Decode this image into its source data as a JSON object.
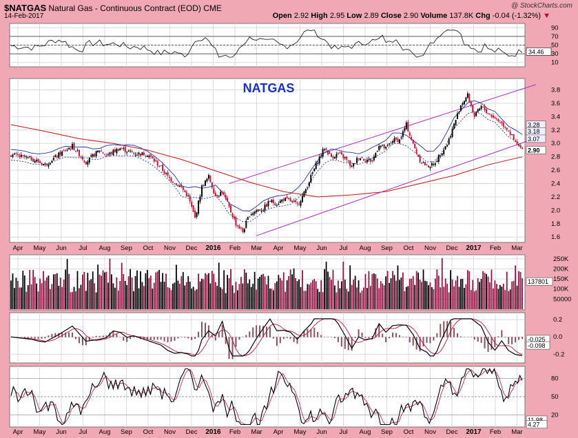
{
  "header": {
    "symbol": "$NATGAS",
    "description": "Natural Gas - Continuous Contract (EOD)",
    "exchange": "CME",
    "date": "14-Feb-2017",
    "watermark": "@ StockCharts.com",
    "open_label": "Open",
    "open": "2.92",
    "high_label": "High",
    "high": "2.95",
    "low_label": "Low",
    "low": "2.89",
    "close_label": "Close",
    "close": "2.90",
    "volume_label": "Volume",
    "volume": "137.8K",
    "chg_label": "Chg",
    "chg": "-0.04 (-1.32%)",
    "chg_marker": "▼"
  },
  "annotation": "NATGAS",
  "colors": {
    "up": "#000000",
    "down": "#cc1133",
    "sma200": "#cc1111",
    "channel": "#b030c0",
    "envelope": "#2233aa",
    "background": "#f0a8b4"
  },
  "chart_data": [
    {
      "panel": "rsi",
      "type": "line",
      "yticks": [
        10,
        30,
        50,
        70,
        90
      ],
      "ylim": [
        0,
        100
      ],
      "last_label": "34.46",
      "reference_lines": [
        30,
        50,
        70
      ]
    },
    {
      "panel": "price",
      "type": "candlestick",
      "title": "NATGAS",
      "yticks": [
        1.6,
        1.8,
        2.0,
        2.2,
        2.4,
        2.6,
        2.8,
        3.0,
        3.2,
        3.4,
        3.6,
        3.8
      ],
      "ylim": [
        1.52,
        3.97
      ],
      "value_tags": [
        "3.28",
        "3.18",
        "3.07",
        "2.90"
      ],
      "x_labels": [
        "Apr",
        "May",
        "Jun",
        "Jul",
        "Aug",
        "Sep",
        "Oct",
        "Nov",
        "Dec",
        "2016",
        "Feb",
        "Mar",
        "Apr",
        "May",
        "Jun",
        "Jul",
        "Aug",
        "Sep",
        "Oct",
        "Nov",
        "Dec",
        "2017",
        "Feb",
        "Mar"
      ],
      "bold_x_labels": [
        "2016",
        "2017"
      ],
      "close_path": [
        [
          0,
          2.83
        ],
        [
          3,
          2.77
        ],
        [
          5,
          2.68
        ],
        [
          7,
          2.83
        ],
        [
          9,
          2.96
        ],
        [
          10,
          2.84
        ],
        [
          11,
          2.72
        ],
        [
          13,
          2.9
        ],
        [
          14,
          2.82
        ],
        [
          16,
          2.93
        ],
        [
          18,
          2.85
        ],
        [
          20,
          2.84
        ],
        [
          21,
          2.74
        ],
        [
          22,
          2.64
        ],
        [
          23,
          2.5
        ],
        [
          24,
          2.42
        ],
        [
          25,
          2.34
        ],
        [
          26,
          2.2
        ],
        [
          27,
          1.88
        ],
        [
          28,
          2.35
        ],
        [
          29,
          2.5
        ],
        [
          30,
          2.22
        ],
        [
          31,
          2.28
        ],
        [
          32,
          2.04
        ],
        [
          33,
          1.8
        ],
        [
          34,
          1.68
        ],
        [
          35,
          1.94
        ],
        [
          36,
          2.0
        ],
        [
          37,
          2.02
        ],
        [
          38,
          2.14
        ],
        [
          39,
          2.1
        ],
        [
          40,
          2.17
        ],
        [
          41,
          2.14
        ],
        [
          42,
          2.08
        ],
        [
          43,
          2.25
        ],
        [
          44,
          2.5
        ],
        [
          45,
          2.74
        ],
        [
          46,
          2.93
        ],
        [
          47,
          2.8
        ],
        [
          48,
          2.84
        ],
        [
          49,
          2.78
        ],
        [
          50,
          2.64
        ],
        [
          51,
          2.8
        ],
        [
          52,
          2.76
        ],
        [
          53,
          2.74
        ],
        [
          54,
          2.98
        ],
        [
          55,
          2.92
        ],
        [
          56,
          3.05
        ],
        [
          57,
          3.05
        ],
        [
          58,
          3.28
        ],
        [
          59,
          2.98
        ],
        [
          60,
          2.75
        ],
        [
          61,
          2.66
        ],
        [
          62,
          2.68
        ],
        [
          63,
          2.85
        ],
        [
          64,
          2.99
        ],
        [
          65,
          3.28
        ],
        [
          66,
          3.58
        ],
        [
          67,
          3.72
        ],
        [
          68,
          3.4
        ],
        [
          69,
          3.55
        ],
        [
          70,
          3.45
        ],
        [
          71,
          3.38
        ],
        [
          72,
          3.3
        ],
        [
          73,
          3.2
        ],
        [
          74,
          3.0
        ],
        [
          75,
          2.9
        ]
      ],
      "sma200_path": [
        [
          0,
          3.28
        ],
        [
          5,
          3.18
        ],
        [
          10,
          3.07
        ],
        [
          15,
          3.0
        ],
        [
          20,
          2.9
        ],
        [
          25,
          2.76
        ],
        [
          30,
          2.59
        ],
        [
          35,
          2.42
        ],
        [
          40,
          2.28
        ],
        [
          45,
          2.2
        ],
        [
          50,
          2.23
        ],
        [
          55,
          2.28
        ],
        [
          60,
          2.4
        ],
        [
          65,
          2.52
        ],
        [
          70,
          2.68
        ],
        [
          75,
          2.8
        ]
      ],
      "channel_upper": [
        [
          32,
          2.4
        ],
        [
          75,
          3.88
        ]
      ],
      "channel_lower": [
        [
          36,
          1.62
        ],
        [
          75,
          3.08
        ]
      ]
    },
    {
      "panel": "volume",
      "type": "bar",
      "yticks": [
        "250K",
        "200K",
        "150K",
        "100K",
        "50000"
      ],
      "ylim": [
        0,
        270000
      ],
      "last_label": "137801"
    },
    {
      "panel": "macd",
      "type": "line",
      "yticks": [
        "0.2",
        "0.0",
        "-0.2"
      ],
      "ylim": [
        -0.3,
        0.28
      ],
      "value_tags": [
        "-0.025",
        "-0.098"
      ]
    },
    {
      "panel": "stochastic",
      "type": "line",
      "yticks": [
        20,
        50,
        80
      ],
      "ylim": [
        0,
        100
      ],
      "value_tags": [
        "11.98",
        "4.27"
      ],
      "x_labels": [
        "Apr",
        "May",
        "Jun",
        "Jul",
        "Aug",
        "Sep",
        "Oct",
        "Nov",
        "Dec",
        "2016",
        "Feb",
        "Mar",
        "Apr",
        "May",
        "Jun",
        "Jul",
        "Aug",
        "Sep",
        "Oct",
        "Nov",
        "Dec",
        "2017",
        "Feb",
        "Mar"
      ],
      "bold_x_labels": [
        "2016",
        "2017"
      ]
    }
  ]
}
